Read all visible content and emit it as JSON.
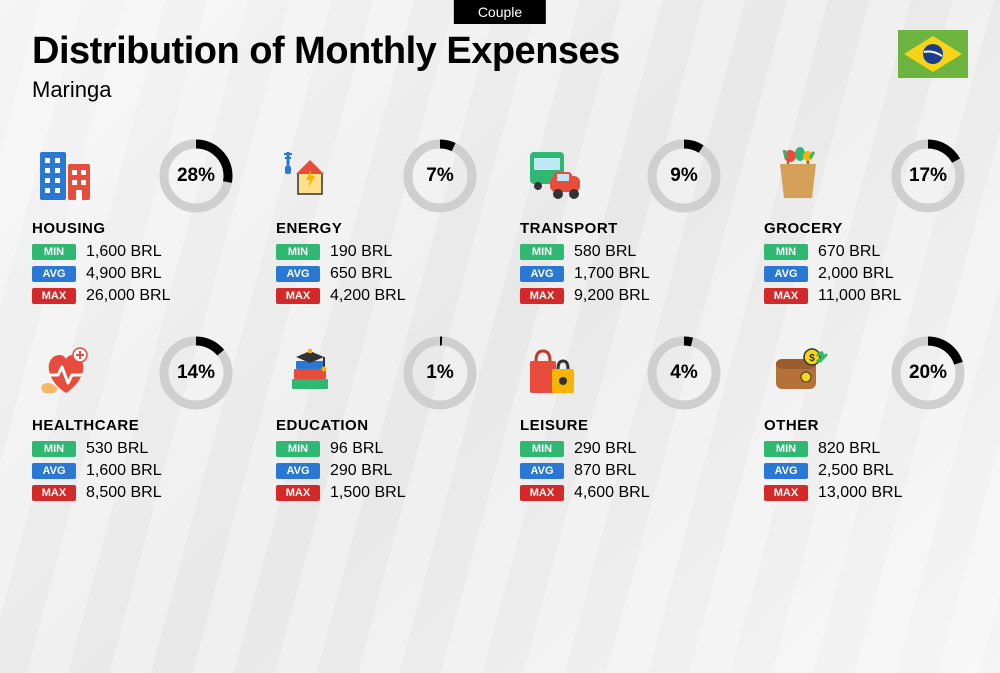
{
  "top_badge": "Couple",
  "title": "Distribution of Monthly Expenses",
  "subtitle": "Maringa",
  "currency": "BRL",
  "flag": {
    "bg": "#6db33f",
    "diamond": "#f7d417",
    "circle": "#1a3e8c"
  },
  "badges": {
    "min_label": "MIN",
    "avg_label": "AVG",
    "max_label": "MAX",
    "min_color": "#2eb872",
    "avg_color": "#2878d4",
    "max_color": "#d42929"
  },
  "donut_style": {
    "track_color": "#cfcfcf",
    "fill_color": "#000000",
    "stroke_width": 9,
    "radius": 32
  },
  "categories": [
    {
      "name": "HOUSING",
      "percent": 28,
      "min": "1,600 BRL",
      "avg": "4,900 BRL",
      "max": "26,000 BRL",
      "icon": "buildings"
    },
    {
      "name": "ENERGY",
      "percent": 7,
      "min": "190 BRL",
      "avg": "650 BRL",
      "max": "4,200 BRL",
      "icon": "energy"
    },
    {
      "name": "TRANSPORT",
      "percent": 9,
      "min": "580 BRL",
      "avg": "1,700 BRL",
      "max": "9,200 BRL",
      "icon": "transport"
    },
    {
      "name": "GROCERY",
      "percent": 17,
      "min": "670 BRL",
      "avg": "2,000 BRL",
      "max": "11,000 BRL",
      "icon": "grocery"
    },
    {
      "name": "HEALTHCARE",
      "percent": 14,
      "min": "530 BRL",
      "avg": "1,600 BRL",
      "max": "8,500 BRL",
      "icon": "healthcare"
    },
    {
      "name": "EDUCATION",
      "percent": 1,
      "min": "96 BRL",
      "avg": "290 BRL",
      "max": "1,500 BRL",
      "icon": "education"
    },
    {
      "name": "LEISURE",
      "percent": 4,
      "min": "290 BRL",
      "avg": "870 BRL",
      "max": "4,600 BRL",
      "icon": "leisure"
    },
    {
      "name": "OTHER",
      "percent": 20,
      "min": "820 BRL",
      "avg": "2,500 BRL",
      "max": "13,000 BRL",
      "icon": "other"
    }
  ]
}
